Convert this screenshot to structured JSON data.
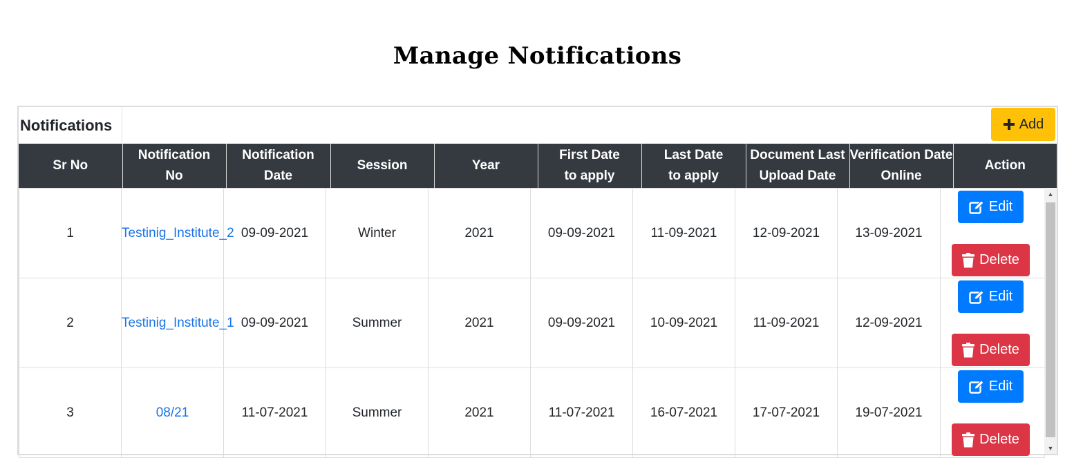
{
  "page": {
    "title": "Manage Notifications"
  },
  "card": {
    "title": "Notifications",
    "add_label": "Add"
  },
  "table": {
    "headers": [
      [
        "Sr No"
      ],
      [
        "Notification",
        "No"
      ],
      [
        "Notification",
        "Date"
      ],
      [
        "Session"
      ],
      [
        "Year"
      ],
      [
        "First Date",
        "to apply"
      ],
      [
        "Last Date",
        "to apply"
      ],
      [
        "Document Last",
        "Upload Date"
      ],
      [
        "Verification Date",
        "Online"
      ],
      [
        "Action"
      ]
    ],
    "edit_label": "Edit",
    "delete_label": "Delete",
    "rows": [
      {
        "sr": "1",
        "notification_no": "Testinig_Institute_2",
        "notification_date": "09-09-2021",
        "session": "Winter",
        "year": "2021",
        "first_date": "09-09-2021",
        "last_date": "11-09-2021",
        "doc_last_upload": "12-09-2021",
        "verification_date": "13-09-2021"
      },
      {
        "sr": "2",
        "notification_no": "Testinig_Institute_1",
        "notification_date": "09-09-2021",
        "session": "Summer",
        "year": "2021",
        "first_date": "09-09-2021",
        "last_date": "10-09-2021",
        "doc_last_upload": "11-09-2021",
        "verification_date": "12-09-2021"
      },
      {
        "sr": "3",
        "notification_no": "08/21",
        "notification_date": "11-07-2021",
        "session": "Summer",
        "year": "2021",
        "first_date": "11-07-2021",
        "last_date": "16-07-2021",
        "doc_last_upload": "17-07-2021",
        "verification_date": "19-07-2021"
      }
    ]
  },
  "colors": {
    "header_bg": "#343a40",
    "add_button": "#ffc107",
    "edit_button": "#007bff",
    "delete_button": "#dc3545",
    "link": "#1a73e8"
  },
  "icons": {
    "add": "plus-icon",
    "edit": "edit-icon",
    "delete": "trash-icon"
  }
}
